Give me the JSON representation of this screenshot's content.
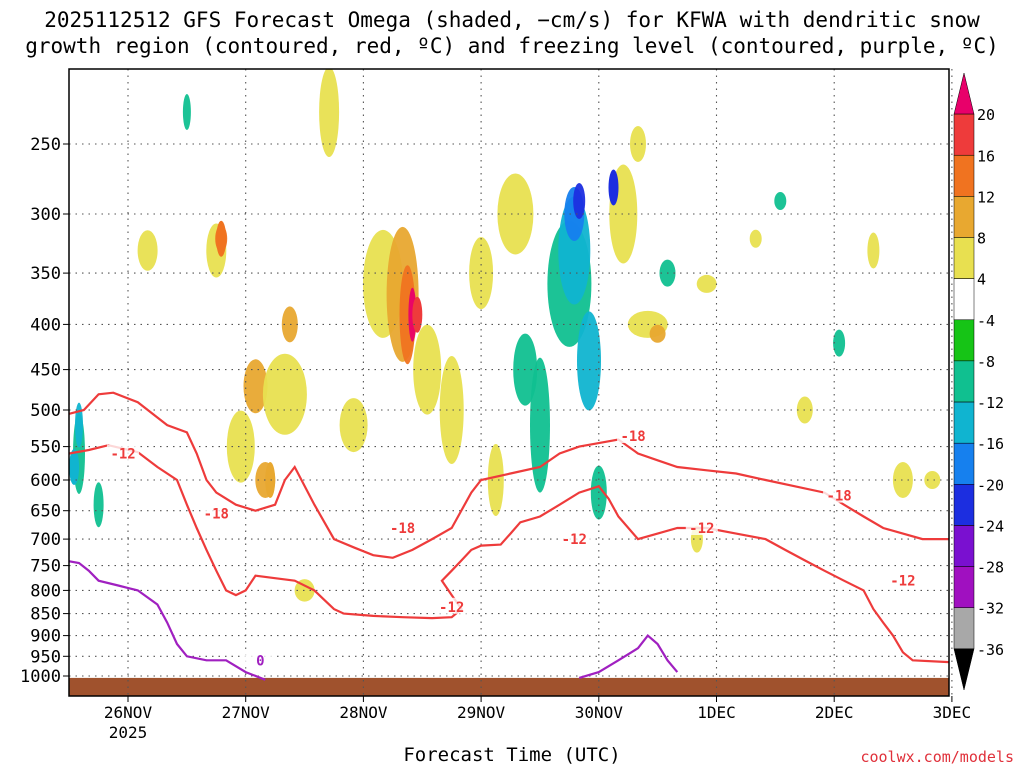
{
  "title_line1": "2025112512 GFS Forecast Omega (shaded, −cm/s) for KFWA with dendritic snow",
  "title_line2": "growth region (contoured, red, ºC) and freezing level (contoured, purple, ºC)",
  "xlabel": "Forecast Time (UTC)",
  "credit": "coolwx.com/models",
  "chart_data": {
    "type": "heatmap",
    "title": "2025112512 GFS Forecast Omega (shaded, −cm/s) for KFWA with dendritic snow growth region (contoured, red, ºC) and freezing level (contoured, purple, ºC)",
    "xlabel": "Forecast Time (UTC)",
    "ylabel": "",
    "x_range": [
      "2025-11-25 12Z",
      "2025-12-03 00Z"
    ],
    "x_ticks": [
      "26NOV",
      "27NOV",
      "28NOV",
      "29NOV",
      "30NOV",
      "1DEC",
      "2DEC",
      "3DEC"
    ],
    "x_tick_year": "2025",
    "y_ticks": [
      250,
      300,
      350,
      400,
      450,
      500,
      550,
      600,
      650,
      700,
      750,
      800,
      850,
      900,
      950,
      1000
    ],
    "y_scale": "log (pressure, hPa), inverted",
    "ylim": [
      1050,
      200
    ],
    "grid": "dotted",
    "colorbar": {
      "labels": [
        20,
        16,
        12,
        8,
        4,
        -4,
        -8,
        -12,
        -16,
        -20,
        -24,
        -28,
        -32,
        -36
      ],
      "colors": [
        "#e8006a",
        "#ee3b3b",
        "#f07320",
        "#e8a830",
        "#e8e050",
        "#ffffff",
        "#16c416",
        "#10c090",
        "#10b4d0",
        "#1680ee",
        "#1c2ee0",
        "#7a10d0",
        "#a010c0",
        "#a8a8a8",
        "#000000"
      ]
    },
    "contours": [
      {
        "name": "-12",
        "color": "#ee3b3b",
        "label_positions": [
          [
            "2025-11-25 23Z",
            560
          ],
          [
            "2025-11-28 18Z",
            835
          ],
          [
            "2025-11-29 19Z",
            700
          ],
          [
            "2025-11-30 21Z",
            680
          ],
          [
            "2025-12-02 14Z",
            780
          ]
        ]
      },
      {
        "name": "-18",
        "color": "#ee3b3b",
        "label_positions": [
          [
            "2025-11-26 18Z",
            655
          ],
          [
            "2025-11-28 08Z",
            680
          ],
          [
            "2025-11-30 07Z",
            535
          ],
          [
            "2025-12-02 01Z",
            625
          ]
        ]
      },
      {
        "name": "0",
        "color": "#a020c0",
        "label_positions": [
          [
            "2025-11-27 03Z",
            960
          ]
        ]
      }
    ],
    "ground_color": "#a0522d",
    "ground_top_hpa": 1005,
    "omega_features": [
      {
        "time": "2025-11-30 03Z",
        "pressure": 280,
        "value": -22
      },
      {
        "time": "2025-11-28 11Z",
        "pressure": 390,
        "value": 18
      },
      {
        "time": "2025-11-26 19Z",
        "pressure": 320,
        "value": 12
      },
      {
        "time": "2025-11-27 05Z",
        "pressure": 600,
        "value": 10
      },
      {
        "time": "2025-11-25 13Z",
        "pressure": 580,
        "value": -14
      }
    ]
  }
}
